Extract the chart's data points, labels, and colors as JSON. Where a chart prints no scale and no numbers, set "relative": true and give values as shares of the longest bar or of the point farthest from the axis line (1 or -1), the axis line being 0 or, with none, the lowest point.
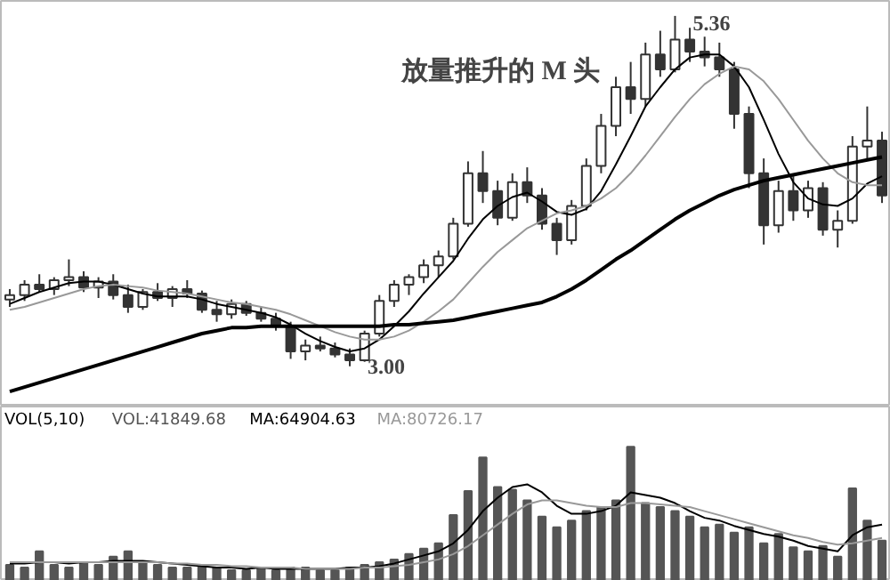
{
  "chart_data": [
    {
      "type": "candlestick",
      "title": "放量推升的 M 头",
      "categories": [
        null,
        null,
        null,
        null,
        null,
        null,
        null,
        null,
        null,
        null,
        null,
        null,
        null,
        null,
        null,
        null,
        null,
        null,
        null,
        null,
        null,
        null,
        null,
        null,
        null,
        null,
        null,
        null,
        null,
        null,
        null,
        null,
        null,
        null,
        null,
        null,
        null,
        null,
        null,
        null,
        null,
        null,
        null,
        null,
        null,
        null,
        null,
        null,
        null,
        null,
        null,
        null,
        null,
        null,
        null,
        null,
        null,
        null,
        null,
        null
      ],
      "color": "#333333",
      "ohlc": [
        [
          3.45,
          3.52,
          3.4,
          3.48
        ],
        [
          3.48,
          3.58,
          3.44,
          3.55
        ],
        [
          3.55,
          3.62,
          3.5,
          3.52
        ],
        [
          3.52,
          3.6,
          3.48,
          3.58
        ],
        [
          3.58,
          3.72,
          3.54,
          3.6
        ],
        [
          3.6,
          3.64,
          3.5,
          3.53
        ],
        [
          3.53,
          3.6,
          3.46,
          3.57
        ],
        [
          3.57,
          3.62,
          3.45,
          3.48
        ],
        [
          3.48,
          3.55,
          3.36,
          3.4
        ],
        [
          3.4,
          3.52,
          3.38,
          3.5
        ],
        [
          3.5,
          3.56,
          3.44,
          3.46
        ],
        [
          3.46,
          3.54,
          3.4,
          3.52
        ],
        [
          3.52,
          3.58,
          3.46,
          3.49
        ],
        [
          3.49,
          3.51,
          3.36,
          3.38
        ],
        [
          3.38,
          3.44,
          3.3,
          3.35
        ],
        [
          3.35,
          3.45,
          3.32,
          3.42
        ],
        [
          3.42,
          3.44,
          3.34,
          3.36
        ],
        [
          3.36,
          3.4,
          3.3,
          3.32
        ],
        [
          3.32,
          3.36,
          3.24,
          3.27
        ],
        [
          3.27,
          3.3,
          3.05,
          3.1
        ],
        [
          3.1,
          3.18,
          3.04,
          3.14
        ],
        [
          3.14,
          3.2,
          3.1,
          3.12
        ],
        [
          3.12,
          3.16,
          3.06,
          3.08
        ],
        [
          3.08,
          3.12,
          3.0,
          3.04
        ],
        [
          3.04,
          3.24,
          3.03,
          3.22
        ],
        [
          3.22,
          3.48,
          3.2,
          3.44
        ],
        [
          3.44,
          3.58,
          3.4,
          3.55
        ],
        [
          3.55,
          3.62,
          3.48,
          3.6
        ],
        [
          3.6,
          3.72,
          3.56,
          3.68
        ],
        [
          3.68,
          3.78,
          3.6,
          3.74
        ],
        [
          3.74,
          4.0,
          3.72,
          3.96
        ],
        [
          3.96,
          4.38,
          3.94,
          4.3
        ],
        [
          4.3,
          4.45,
          4.1,
          4.18
        ],
        [
          4.18,
          4.25,
          3.95,
          4.0
        ],
        [
          4.0,
          4.3,
          3.98,
          4.24
        ],
        [
          4.24,
          4.34,
          4.1,
          4.15
        ],
        [
          4.15,
          4.2,
          3.92,
          3.96
        ],
        [
          3.96,
          4.0,
          3.75,
          3.85
        ],
        [
          3.85,
          4.12,
          3.82,
          4.08
        ],
        [
          4.08,
          4.4,
          4.05,
          4.35
        ],
        [
          4.35,
          4.7,
          4.3,
          4.62
        ],
        [
          4.62,
          4.95,
          4.55,
          4.88
        ],
        [
          4.88,
          5.05,
          4.7,
          4.8
        ],
        [
          4.8,
          5.18,
          4.75,
          5.1
        ],
        [
          5.1,
          5.26,
          4.95,
          5.0
        ],
        [
          5.0,
          5.36,
          4.98,
          5.2
        ],
        [
          5.2,
          5.28,
          5.05,
          5.12
        ],
        [
          5.12,
          5.22,
          5.02,
          5.08
        ],
        [
          5.08,
          5.18,
          4.95,
          5.0
        ],
        [
          5.0,
          5.05,
          4.6,
          4.7
        ],
        [
          4.7,
          4.75,
          4.2,
          4.3
        ],
        [
          4.3,
          4.4,
          3.82,
          3.95
        ],
        [
          3.95,
          4.25,
          3.9,
          4.18
        ],
        [
          4.18,
          4.28,
          3.98,
          4.05
        ],
        [
          4.05,
          4.25,
          4.0,
          4.2
        ],
        [
          4.2,
          4.24,
          3.88,
          3.92
        ],
        [
          3.92,
          4.05,
          3.8,
          3.98
        ],
        [
          3.98,
          4.55,
          3.96,
          4.48
        ],
        [
          4.48,
          4.75,
          4.4,
          4.52
        ],
        [
          4.52,
          4.58,
          4.1,
          4.15
        ]
      ],
      "series": [
        {
          "type": "line",
          "color": "#000000",
          "values": [
            3.42,
            3.46,
            3.5,
            3.53,
            3.56,
            3.57,
            3.57,
            3.55,
            3.52,
            3.49,
            3.47,
            3.47,
            3.47,
            3.45,
            3.42,
            3.4,
            3.38,
            3.36,
            3.33,
            3.28,
            3.22,
            3.17,
            3.13,
            3.1,
            3.12,
            3.18,
            3.27,
            3.37,
            3.49,
            3.6,
            3.71,
            3.86,
            3.99,
            4.08,
            4.14,
            4.17,
            4.11,
            4.04,
            4.02,
            4.06,
            4.18,
            4.36,
            4.55,
            4.75,
            4.88,
            5.0,
            5.08,
            5.1,
            5.1,
            5.02,
            4.88,
            4.66,
            4.43,
            4.24,
            4.13,
            4.09,
            4.08,
            4.13,
            4.23,
            4.28
          ]
        },
        {
          "type": "line",
          "color": "#999999",
          "values": [
            3.38,
            3.4,
            3.43,
            3.46,
            3.49,
            3.52,
            3.54,
            3.55,
            3.54,
            3.53,
            3.51,
            3.5,
            3.49,
            3.47,
            3.45,
            3.43,
            3.42,
            3.4,
            3.38,
            3.35,
            3.31,
            3.27,
            3.23,
            3.2,
            3.18,
            3.18,
            3.2,
            3.24,
            3.3,
            3.37,
            3.45,
            3.56,
            3.67,
            3.77,
            3.85,
            3.93,
            3.98,
            4.03,
            4.05,
            4.08,
            4.13,
            4.2,
            4.3,
            4.42,
            4.55,
            4.68,
            4.8,
            4.9,
            4.97,
            5.02,
            5.0,
            4.92,
            4.8,
            4.66,
            4.52,
            4.4,
            4.3,
            4.24,
            4.22,
            4.22
          ]
        },
        {
          "type": "line",
          "color": "#000000",
          "values": [
            2.83,
            2.86,
            2.89,
            2.92,
            2.95,
            2.98,
            3.01,
            3.04,
            3.07,
            3.1,
            3.13,
            3.16,
            3.19,
            3.22,
            3.24,
            3.26,
            3.26,
            3.27,
            3.27,
            3.27,
            3.27,
            3.27,
            3.27,
            3.27,
            3.27,
            3.27,
            3.28,
            3.28,
            3.29,
            3.3,
            3.31,
            3.33,
            3.35,
            3.37,
            3.39,
            3.41,
            3.43,
            3.47,
            3.52,
            3.58,
            3.65,
            3.72,
            3.78,
            3.85,
            3.92,
            3.99,
            4.05,
            4.1,
            4.15,
            4.19,
            4.22,
            4.25,
            4.27,
            4.29,
            4.31,
            4.33,
            4.35,
            4.37,
            4.39,
            4.41
          ]
        }
      ],
      "annotations": [
        "5.36",
        "3.00"
      ]
    },
    {
      "type": "bar",
      "title": "VOL(5,10)",
      "relative": true,
      "categories": [
        null,
        null,
        null,
        null,
        null,
        null,
        null,
        null,
        null,
        null,
        null,
        null,
        null,
        null,
        null,
        null,
        null,
        null,
        null,
        null,
        null,
        null,
        null,
        null,
        null,
        null,
        null,
        null,
        null,
        null,
        null,
        null,
        null,
        null,
        null,
        null,
        null,
        null,
        null,
        null,
        null,
        null,
        null,
        null,
        null,
        null,
        null,
        null,
        null,
        null,
        null,
        null,
        null,
        null,
        null,
        null,
        null,
        null,
        null,
        null
      ],
      "series": [
        {
          "name": "VOL:41849.68",
          "color": "#555555",
          "values": [
            0.12,
            0.1,
            0.22,
            0.12,
            0.1,
            0.14,
            0.12,
            0.18,
            0.22,
            0.14,
            0.12,
            0.1,
            0.1,
            0.12,
            0.1,
            0.08,
            0.08,
            0.1,
            0.08,
            0.1,
            0.1,
            0.08,
            0.08,
            0.1,
            0.12,
            0.14,
            0.16,
            0.2,
            0.24,
            0.28,
            0.49,
            0.67,
            0.92,
            0.7,
            0.68,
            0.6,
            0.48,
            0.4,
            0.45,
            0.52,
            0.55,
            0.6,
            1.0,
            0.58,
            0.55,
            0.52,
            0.48,
            0.4,
            0.42,
            0.36,
            0.4,
            0.28,
            0.35,
            0.25,
            0.22,
            0.26,
            0.18,
            0.69,
            0.45,
            0.3
          ]
        },
        {
          "type": "line",
          "name": "MA:64904.63",
          "color": "#000000",
          "values": [
            0.13,
            0.13,
            0.14,
            0.14,
            0.13,
            0.14,
            0.14,
            0.15,
            0.15,
            0.15,
            0.14,
            0.13,
            0.12,
            0.11,
            0.1,
            0.1,
            0.09,
            0.1,
            0.09,
            0.09,
            0.09,
            0.09,
            0.09,
            0.1,
            0.1,
            0.11,
            0.13,
            0.16,
            0.19,
            0.22,
            0.28,
            0.38,
            0.52,
            0.62,
            0.7,
            0.72,
            0.66,
            0.56,
            0.5,
            0.5,
            0.52,
            0.56,
            0.66,
            0.64,
            0.62,
            0.58,
            0.52,
            0.47,
            0.45,
            0.41,
            0.38,
            0.35,
            0.33,
            0.3,
            0.26,
            0.24,
            0.22,
            0.34,
            0.4,
            0.42
          ]
        },
        {
          "type": "line",
          "name": "MA:80726.17",
          "color": "#999999",
          "values": [
            0.14,
            0.14,
            0.14,
            0.14,
            0.14,
            0.14,
            0.14,
            0.14,
            0.14,
            0.14,
            0.14,
            0.13,
            0.13,
            0.12,
            0.12,
            0.11,
            0.11,
            0.1,
            0.1,
            0.1,
            0.09,
            0.09,
            0.09,
            0.09,
            0.1,
            0.1,
            0.11,
            0.12,
            0.14,
            0.16,
            0.2,
            0.26,
            0.34,
            0.42,
            0.5,
            0.57,
            0.6,
            0.6,
            0.58,
            0.56,
            0.55,
            0.55,
            0.58,
            0.58,
            0.57,
            0.56,
            0.55,
            0.52,
            0.49,
            0.46,
            0.43,
            0.4,
            0.37,
            0.34,
            0.32,
            0.29,
            0.27,
            0.28,
            0.3,
            0.32
          ]
        }
      ]
    }
  ]
}
